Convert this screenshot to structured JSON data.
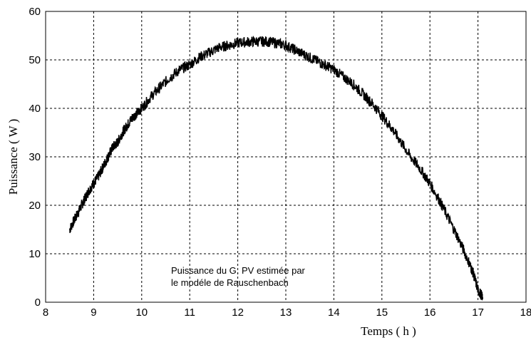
{
  "chart_data": {
    "type": "line",
    "xlabel": "Temps ( h )",
    "ylabel": "Puissance ( W )",
    "xlim": [
      8,
      18
    ],
    "ylim": [
      0,
      60
    ],
    "x_ticks": [
      8,
      9,
      10,
      11,
      12,
      13,
      14,
      15,
      16,
      17,
      18
    ],
    "y_ticks": [
      0,
      10,
      20,
      30,
      40,
      50,
      60
    ],
    "grid": true,
    "annotation": [
      "Puissance du G. PV estimée par",
      "le modéle de Rauschenbach"
    ],
    "series": [
      {
        "color": "#000000",
        "x": [
          8.5,
          8.6,
          8.7,
          8.8,
          8.9,
          9.0,
          9.1,
          9.2,
          9.3,
          9.4,
          9.5,
          9.6,
          9.7,
          9.8,
          9.9,
          10.0,
          10.2,
          10.4,
          10.6,
          10.8,
          11.0,
          11.2,
          11.4,
          11.6,
          11.8,
          12.0,
          12.2,
          12.4,
          12.6,
          12.8,
          13.0,
          13.2,
          13.4,
          13.6,
          13.8,
          14.0,
          14.2,
          14.4,
          14.6,
          14.8,
          15.0,
          15.2,
          15.4,
          15.6,
          15.8,
          16.0,
          16.2,
          16.4,
          16.6,
          16.8,
          16.9,
          17.0,
          17.1
        ],
        "y": [
          15,
          17,
          19,
          21,
          23,
          24.5,
          26,
          28,
          30,
          32,
          33,
          35,
          36.5,
          38,
          39,
          40,
          42.5,
          44.5,
          46.5,
          48,
          49,
          50.5,
          51.5,
          52.5,
          53,
          53.5,
          53.7,
          53.8,
          53.8,
          53.5,
          53,
          52,
          51,
          50,
          49,
          48,
          46.5,
          45,
          43,
          41,
          38.5,
          36,
          33,
          30,
          27.5,
          24.5,
          21,
          17,
          13,
          8.5,
          6,
          2.5,
          1
        ]
      }
    ]
  }
}
